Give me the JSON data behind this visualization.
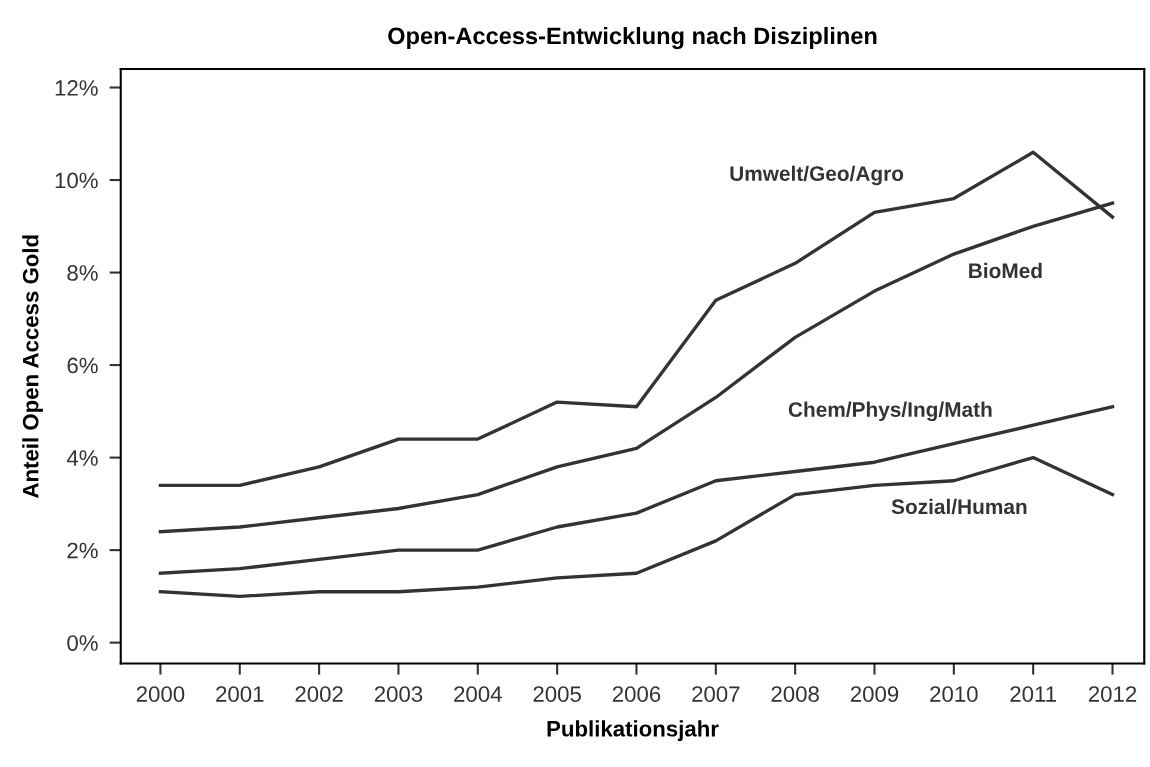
{
  "chart_data": {
    "type": "line",
    "title": "Open-Access-Entwicklung nach Disziplinen",
    "xlabel": "Publikationsjahr",
    "ylabel": "Anteil Open Access Gold",
    "x": [
      2000,
      2001,
      2002,
      2003,
      2004,
      2005,
      2006,
      2007,
      2008,
      2009,
      2010,
      2011,
      2012
    ],
    "series": [
      {
        "name": "Umwelt/Geo/Agro",
        "color": "#333333",
        "values": [
          3.4,
          3.4,
          3.8,
          4.4,
          4.4,
          5.2,
          5.1,
          7.4,
          8.2,
          9.3,
          9.6,
          10.6,
          9.2
        ]
      },
      {
        "name": "BioMed",
        "color": "#333333",
        "values": [
          2.4,
          2.5,
          2.7,
          2.9,
          3.2,
          3.8,
          4.2,
          5.3,
          6.6,
          7.6,
          8.4,
          9.0,
          9.5
        ]
      },
      {
        "name": "Chem/Phys/Ing/Math",
        "color": "#333333",
        "values": [
          1.5,
          1.6,
          1.8,
          2.0,
          2.0,
          2.5,
          2.8,
          3.5,
          3.7,
          3.9,
          4.3,
          4.7,
          5.1
        ]
      },
      {
        "name": "Sozial/Human",
        "color": "#333333",
        "values": [
          1.1,
          1.0,
          1.1,
          1.1,
          1.2,
          1.4,
          1.5,
          2.2,
          3.2,
          3.4,
          3.5,
          4.0,
          3.2
        ]
      }
    ],
    "xlim": [
      1999.5,
      2012.4
    ],
    "ylim": [
      -0.45,
      12.4
    ],
    "xticks": [
      2000,
      2001,
      2002,
      2003,
      2004,
      2005,
      2006,
      2007,
      2008,
      2009,
      2010,
      2011,
      2012
    ],
    "yticks": [
      {
        "value": 0,
        "label": "0%"
      },
      {
        "value": 2,
        "label": "2%"
      },
      {
        "value": 4,
        "label": "4%"
      },
      {
        "value": 6,
        "label": "6%"
      },
      {
        "value": 8,
        "label": "8%"
      },
      {
        "value": 10,
        "label": "10%"
      },
      {
        "value": 12,
        "label": "12%"
      }
    ],
    "grid": false,
    "legend": false,
    "marker": "none",
    "line_style": "solid"
  }
}
